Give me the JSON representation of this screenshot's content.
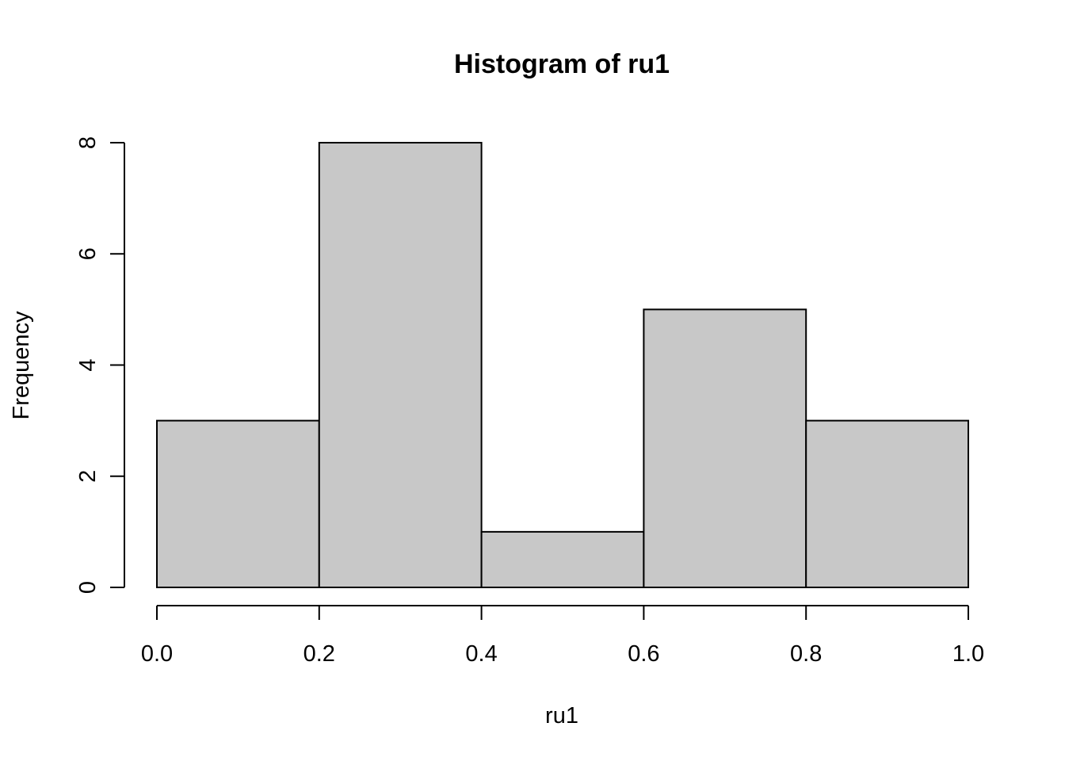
{
  "chart_data": {
    "type": "bar",
    "title": "Histogram of ru1",
    "xlabel": "ru1",
    "ylabel": "Frequency",
    "bins": [
      {
        "start": 0.0,
        "end": 0.2,
        "count": 3
      },
      {
        "start": 0.2,
        "end": 0.4,
        "count": 8
      },
      {
        "start": 0.4,
        "end": 0.6,
        "count": 1
      },
      {
        "start": 0.6,
        "end": 0.8,
        "count": 5
      },
      {
        "start": 0.8,
        "end": 1.0,
        "count": 3
      }
    ],
    "xlim": [
      0.0,
      1.0
    ],
    "ylim": [
      0,
      8
    ],
    "x_ticks": [
      0.0,
      0.2,
      0.4,
      0.6,
      0.8,
      1.0
    ],
    "x_tick_labels": [
      "0.0",
      "0.2",
      "0.4",
      "0.6",
      "0.8",
      "1.0"
    ],
    "y_ticks": [
      0,
      2,
      4,
      6,
      8
    ],
    "y_tick_labels": [
      "0",
      "2",
      "4",
      "6",
      "8"
    ],
    "bar_color": "#c8c8c8",
    "grid": false
  }
}
